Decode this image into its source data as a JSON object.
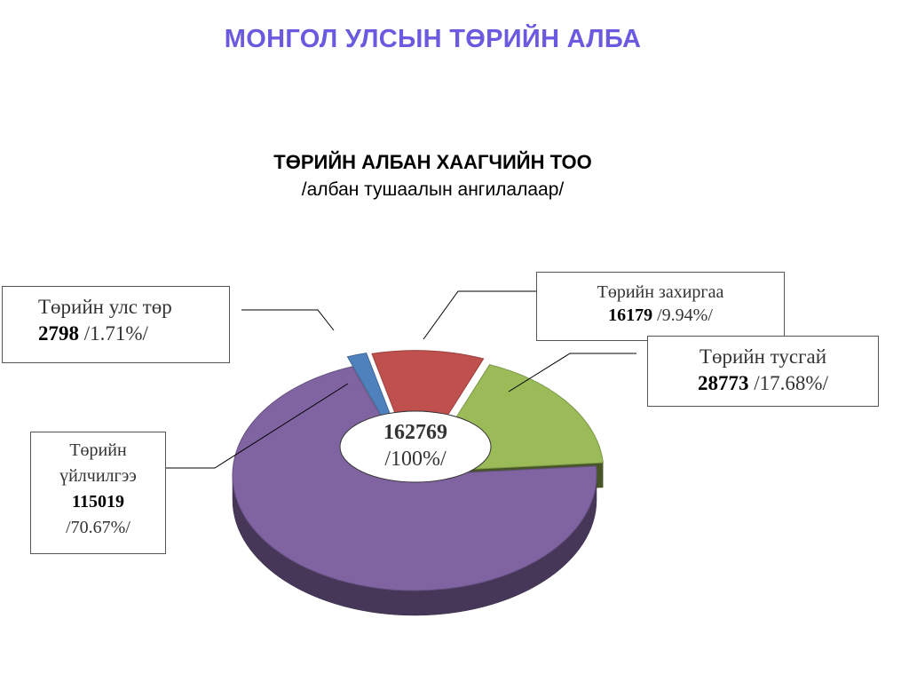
{
  "page_title": "МОНГОЛ УЛСЫН ТӨРИЙН АЛБА",
  "chart_data": {
    "type": "pie",
    "title": "ТӨРИЙН АЛБАН ХААГЧИЙН ТОО",
    "subtitle": "/албан тушаалын ангилалаар/",
    "total": {
      "value": "162769",
      "percent": "/100%/"
    },
    "series": [
      {
        "label": "Төрийн улс төр",
        "value": 2798,
        "value_text": "2798",
        "percent_text": "/1.71%/",
        "color": "#4f81bd"
      },
      {
        "label": "Төрийн захиргаа",
        "value": 16179,
        "value_text": "16179",
        "percent_text": "/9.94%/",
        "color": "#c0504d"
      },
      {
        "label": "Төрийн тусгай",
        "value": 28773,
        "value_text": "28773",
        "percent_text": "/17.68%/",
        "color": "#9bbb59"
      },
      {
        "label": "Төрийн үйлчилгээ",
        "value": 115019,
        "value_text": "115019",
        "percent_text": "/70.67%/",
        "color": "#8064a2"
      }
    ]
  }
}
